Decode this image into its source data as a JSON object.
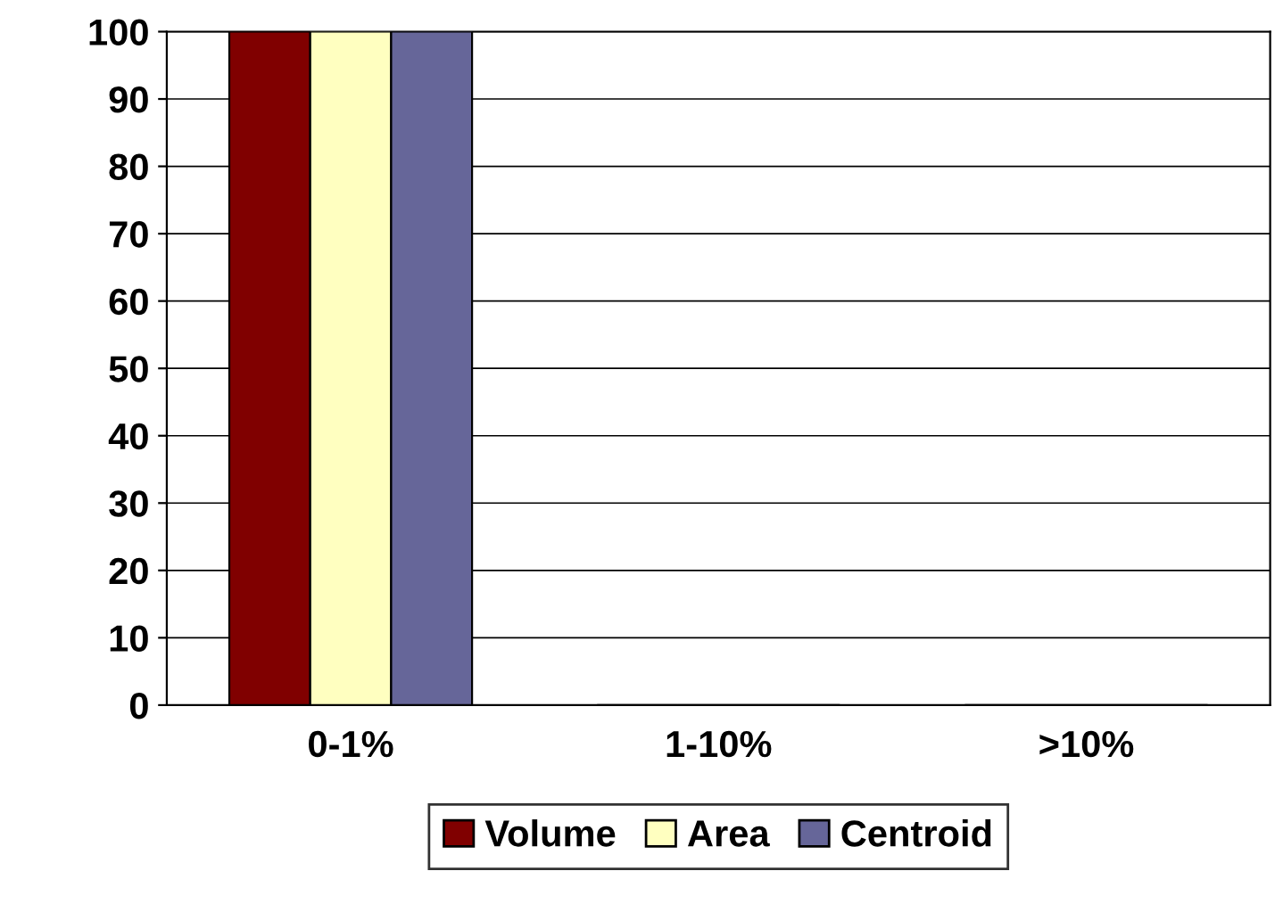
{
  "chart_data": {
    "type": "bar",
    "categories": [
      "0-1%",
      "1-10%",
      ">10%"
    ],
    "series": [
      {
        "name": "Volume",
        "color": "#800000",
        "values": [
          100,
          0,
          0
        ]
      },
      {
        "name": "Area",
        "color": "#ffffc0",
        "values": [
          100,
          0,
          0
        ]
      },
      {
        "name": "Centroid",
        "color": "#666699",
        "values": [
          100,
          0,
          0
        ]
      }
    ],
    "ylim": [
      0,
      100
    ],
    "yticks": [
      0,
      10,
      20,
      30,
      40,
      50,
      60,
      70,
      80,
      90,
      100
    ],
    "grid": "y",
    "legend": "bottom"
  }
}
